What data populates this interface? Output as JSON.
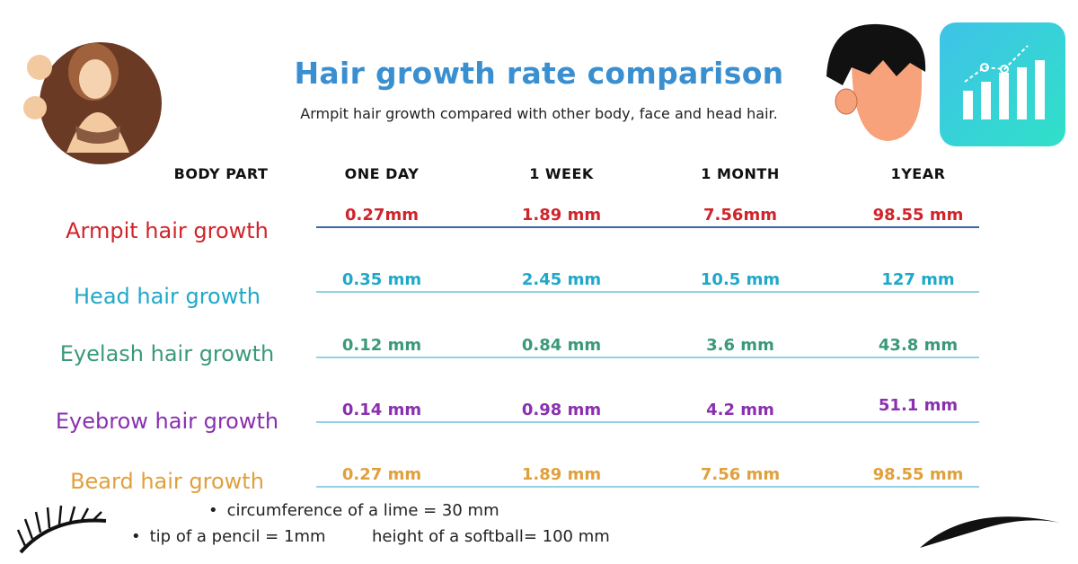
{
  "title": "Hair growth rate comparison",
  "subtitle": "Armpit hair growth compared with other body, face and head hair.",
  "headers": [
    "BODY PART",
    "ONE DAY",
    "1 WEEK",
    "1 MONTH",
    "1YEAR"
  ],
  "rows": [
    {
      "label": "Armpit hair growth",
      "color": "#d0242b",
      "values": [
        "0.27mm",
        "1.89 mm",
        "7.56mm",
        "98.55 mm"
      ]
    },
    {
      "label": "Head hair growth",
      "color": "#1fa8c9",
      "values": [
        "0.35 mm",
        "2.45 mm",
        "10.5 mm",
        "127 mm"
      ]
    },
    {
      "label": "Eyelash hair growth",
      "color": "#3a9a78",
      "values": [
        "0.12 mm",
        "0.84 mm",
        "3.6 mm",
        "43.8 mm"
      ]
    },
    {
      "label": "Eyebrow hair growth",
      "color": "#8a2fb0",
      "values": [
        "0.14 mm",
        "0.98 mm",
        "4.2 mm",
        "51.1 mm"
      ]
    },
    {
      "label": "Beard hair growth",
      "color": "#e0a03c",
      "values": [
        "0.27 mm",
        "1.89 mm",
        "7.56 mm",
        "98.55 mm"
      ]
    }
  ],
  "notes": {
    "lime": "circumference of a lime = 30 mm",
    "pencil": "tip of a pencil = 1mm",
    "softball": "height of a softball= 100 mm"
  }
}
